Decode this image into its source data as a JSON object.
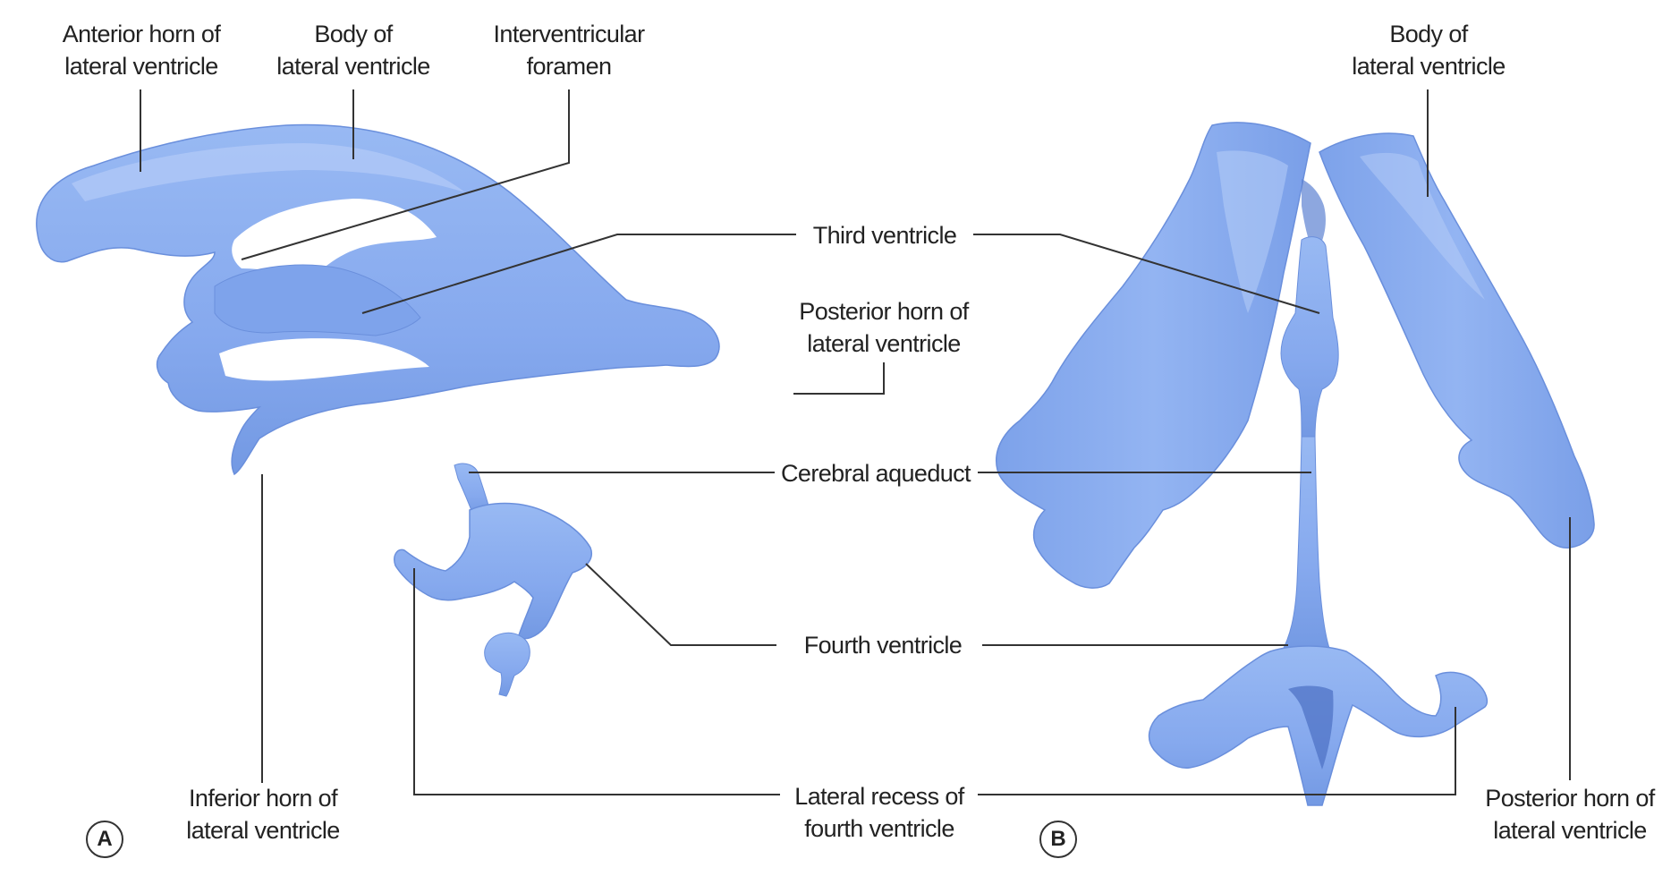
{
  "labels": {
    "anterior_horn_lateral": [
      "Anterior horn of",
      "lateral ventricle"
    ],
    "body_lateral_a": [
      "Body of",
      "lateral ventricle"
    ],
    "interventricular_foramen": [
      "Interventricular",
      "foramen"
    ],
    "body_lateral_b": [
      "Body of",
      "lateral ventricle"
    ],
    "third_ventricle": [
      "Third ventricle"
    ],
    "posterior_horn_a": [
      "Posterior horn of",
      "lateral ventricle"
    ],
    "cerebral_aqueduct": [
      "Cerebral aqueduct"
    ],
    "fourth_ventricle": [
      "Fourth ventricle"
    ],
    "inferior_horn": [
      "Inferior horn of",
      "lateral ventricle"
    ],
    "lateral_recess": [
      "Lateral recess of",
      "fourth ventricle"
    ],
    "posterior_horn_b": [
      "Posterior horn of",
      "lateral ventricle"
    ]
  },
  "panels": {
    "a": "A",
    "b": "B"
  },
  "colors": {
    "ventricle_fill": "#8aaef0",
    "ventricle_shade": "#6d93e0",
    "ventricle_highlight": "#c3d6fb",
    "leader_line": "#333333"
  }
}
